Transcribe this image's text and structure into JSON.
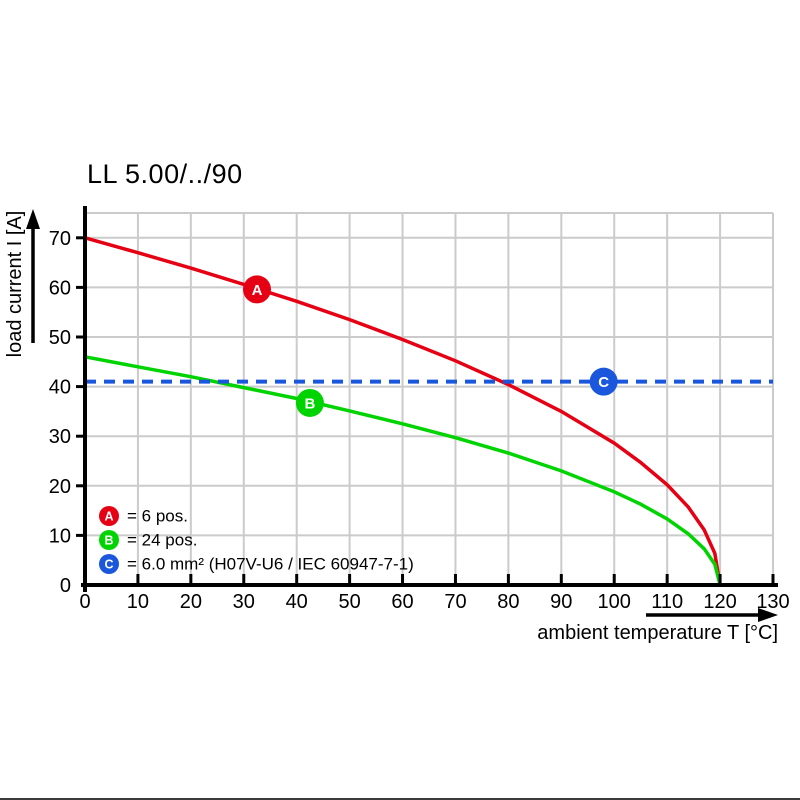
{
  "title": "LL 5.00/../90",
  "colors": {
    "curve_a_red": "#e60013",
    "curve_b_green": "#00d400",
    "curve_c_blue": "#1a57dd",
    "grid": "#cbcbcb",
    "axis": "#000000",
    "background": "#ffffff"
  },
  "chart_data": {
    "type": "line",
    "title": "LL 5.00/../90",
    "xlabel": "ambient temperature T [°C]",
    "ylabel": "load current I [A]",
    "xlim": [
      0,
      130
    ],
    "ylim": [
      0,
      75
    ],
    "x_ticks": [
      0,
      10,
      20,
      30,
      40,
      50,
      60,
      70,
      80,
      90,
      100,
      110,
      120,
      130
    ],
    "y_ticks": [
      0,
      10,
      20,
      30,
      40,
      50,
      60,
      70
    ],
    "x_gridlines": [
      10,
      20,
      30,
      40,
      50,
      60,
      70,
      80,
      90,
      100,
      110,
      120,
      130
    ],
    "y_gridlines": [
      10,
      20,
      30,
      40,
      50,
      60,
      70,
      75
    ],
    "grid": true,
    "legend_position": "inside lower-left",
    "series": [
      {
        "name": "A",
        "legend_letter": "A",
        "legend_label": "= 6 pos.",
        "color": "#e60013",
        "style": "solid",
        "x": [
          0,
          10,
          20,
          30,
          40,
          50,
          60,
          70,
          80,
          90,
          100,
          105,
          110,
          114,
          117,
          119,
          120
        ],
        "y": [
          70,
          67,
          63.9,
          60.6,
          57.2,
          53.5,
          49.5,
          45.2,
          40.4,
          35,
          28.6,
          24.7,
          20.2,
          15.7,
          11.1,
          6.4,
          0
        ],
        "marker": {
          "letter": "A",
          "x": 32.5,
          "y": 59.6
        }
      },
      {
        "name": "B",
        "legend_letter": "B",
        "legend_label": "= 24 pos.",
        "color": "#00d400",
        "style": "solid",
        "x": [
          0,
          10,
          20,
          30,
          40,
          50,
          60,
          70,
          80,
          90,
          100,
          105,
          110,
          114,
          117,
          119,
          120
        ],
        "y": [
          46,
          44,
          42,
          39.8,
          37.6,
          35.1,
          32.5,
          29.7,
          26.6,
          23,
          18.8,
          16.3,
          13.3,
          10.3,
          7.3,
          4.2,
          0
        ],
        "marker": {
          "letter": "B",
          "x": 42.5,
          "y": 36.7
        }
      },
      {
        "name": "C",
        "legend_letter": "C",
        "legend_label": "= 6.0 mm² (H07V-U6 / IEC 60947-7-1)",
        "color": "#1a57dd",
        "style": "dashed",
        "x": [
          0,
          130
        ],
        "y": [
          41,
          41
        ],
        "marker": {
          "letter": "C",
          "x": 98,
          "y": 41
        }
      }
    ]
  }
}
